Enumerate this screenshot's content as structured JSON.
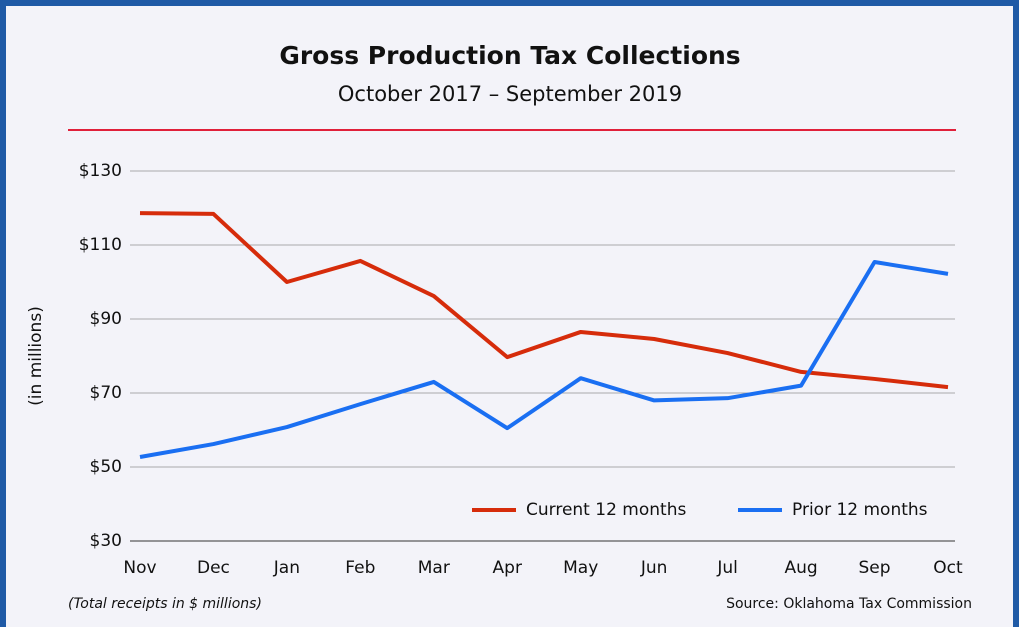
{
  "chart_data": {
    "type": "line",
    "title": "Gross Production Tax Collections",
    "subtitle": "October 2017 – September 2019",
    "ylabel": "(in millions)",
    "categories": [
      "Nov",
      "Dec",
      "Jan",
      "Feb",
      "Mar",
      "Apr",
      "May",
      "Jun",
      "Jul",
      "Aug",
      "Sep",
      "Oct"
    ],
    "series": [
      {
        "name": "Current 12 months",
        "color": "#d62c0b",
        "values": [
          118.6,
          118.4,
          100,
          105.7,
          96.2,
          79.7,
          86.5,
          84.6,
          80.8,
          75.7,
          73.8,
          71.6
        ]
      },
      {
        "name": "Prior 12 months",
        "color": "#1a6ff2",
        "values": [
          52.7,
          56.2,
          60.8,
          67,
          73,
          60.5,
          74,
          68,
          68.6,
          72,
          105.4,
          102.2
        ]
      }
    ],
    "ylim": [
      30,
      130
    ],
    "yticks": [
      {
        "value": 30,
        "label": "$30"
      },
      {
        "value": 50,
        "label": "$50"
      },
      {
        "value": 70,
        "label": "$70"
      },
      {
        "value": 90,
        "label": "$90"
      },
      {
        "value": 110,
        "label": "$110"
      },
      {
        "value": 130,
        "label": "$130"
      }
    ],
    "grid": true,
    "legend": "lower right",
    "note": "(Total receipts in $ millions)",
    "source": "Source: Oklahoma Tax Commission"
  }
}
